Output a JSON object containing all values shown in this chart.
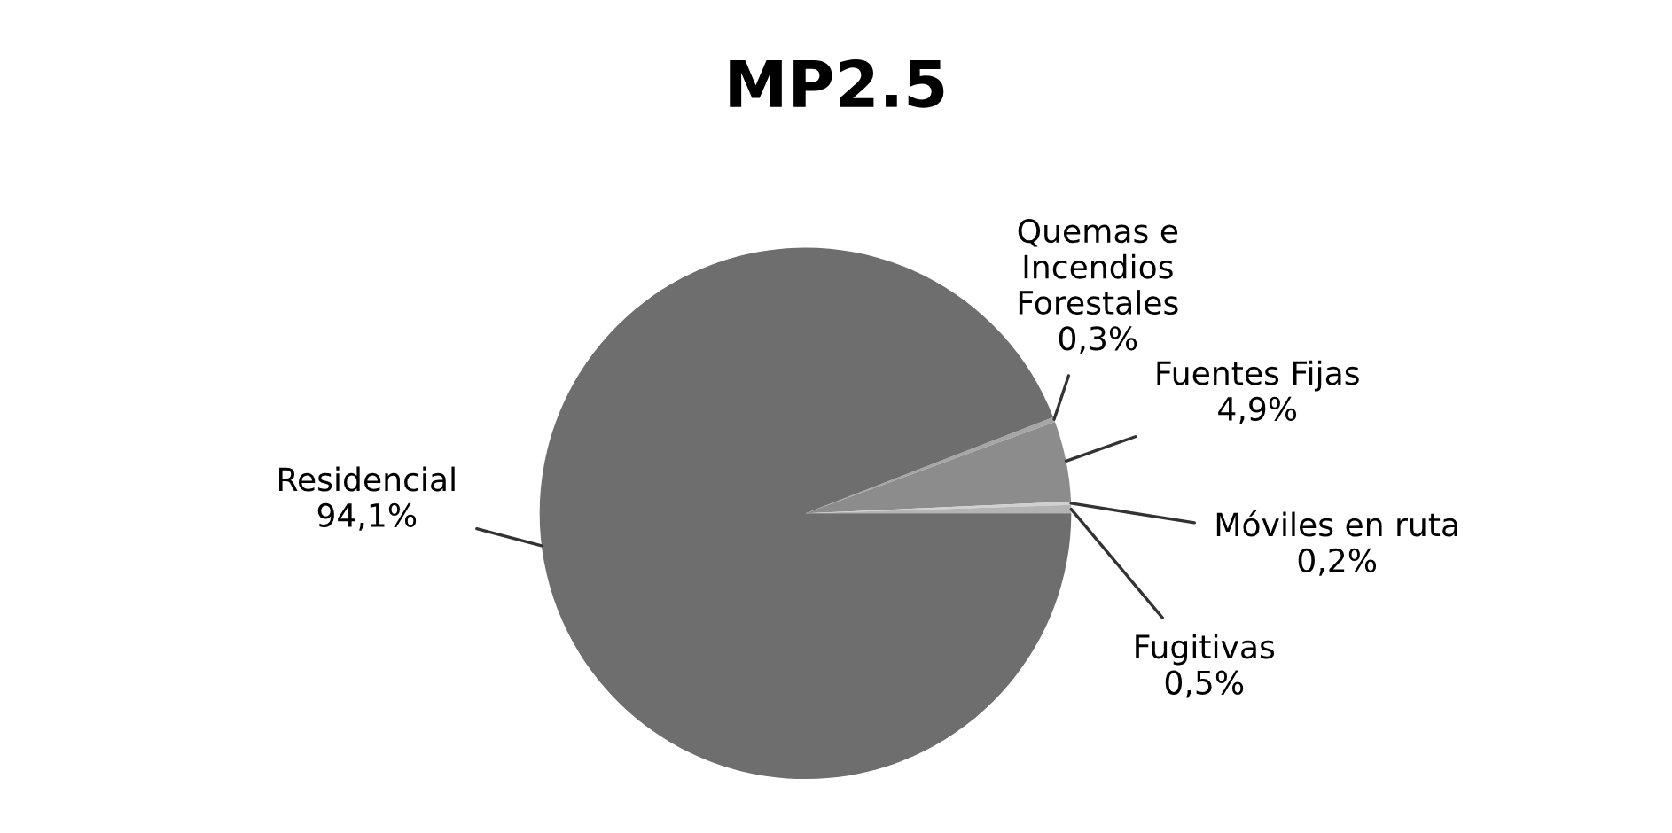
{
  "chart_data": {
    "type": "pie",
    "title": "MP2.5",
    "categories": [
      "Quemas e Incendios Forestales",
      "Fuentes Fijas",
      "Móviles en ruta",
      "Fugitivas",
      "Residencial"
    ],
    "values": [
      0.3,
      4.9,
      0.2,
      0.5,
      94.1
    ],
    "value_labels": [
      "0,3%",
      "4,9%",
      "0,2%",
      "0,5%",
      "94,1%"
    ],
    "colors": [
      "#a6a6a6",
      "#8c8c8c",
      "#d0d0d0",
      "#b4b4b4",
      "#6e6e6e"
    ]
  }
}
